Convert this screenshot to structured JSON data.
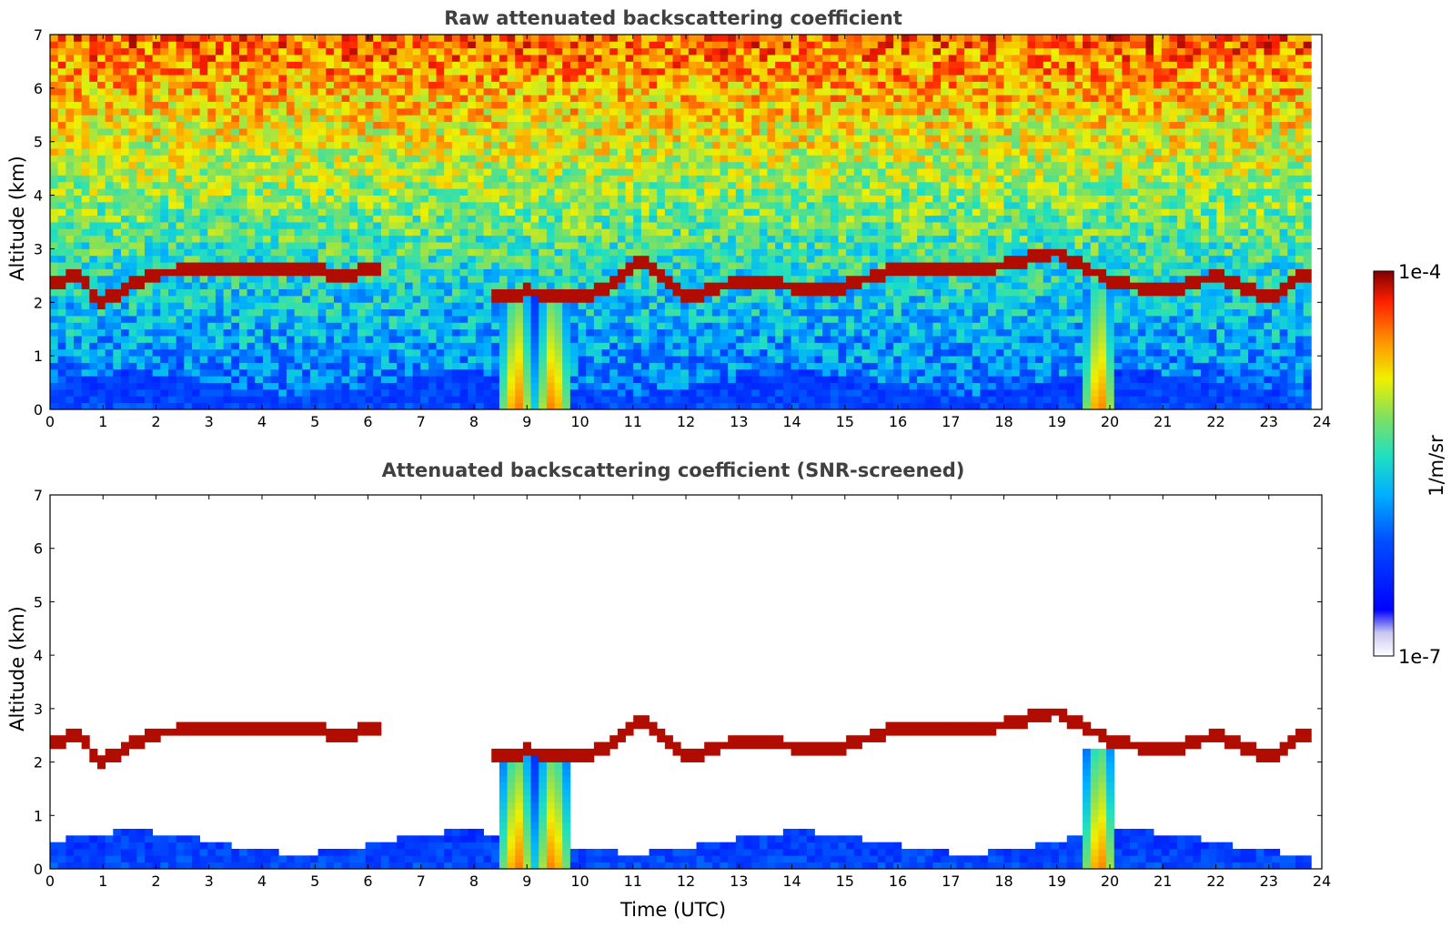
{
  "chart_data": [
    {
      "type": "heatmap",
      "title": "Raw attenuated backscattering coefficient",
      "ylabel": "Altitude (km)",
      "xlabel": "",
      "xlim": [
        0,
        24
      ],
      "ylim": [
        0,
        7
      ],
      "xticks": [
        "0",
        "1",
        "2",
        "3",
        "4",
        "5",
        "6",
        "7",
        "8",
        "9",
        "10",
        "11",
        "12",
        "13",
        "14",
        "15",
        "16",
        "17",
        "18",
        "19",
        "20",
        "21",
        "22",
        "23",
        "24"
      ],
      "yticks": [
        "0",
        "1",
        "2",
        "3",
        "4",
        "5",
        "6",
        "7"
      ],
      "features": {
        "boundary_layer_top_km": 0.5,
        "cloud_layer": [
          [
            0.0,
            2.35
          ],
          [
            0.5,
            2.5
          ],
          [
            1.0,
            2.0
          ],
          [
            1.5,
            2.3
          ],
          [
            2.0,
            2.55
          ],
          [
            3.0,
            2.6
          ],
          [
            4.0,
            2.6
          ],
          [
            5.0,
            2.6
          ],
          [
            5.6,
            2.5
          ],
          [
            6.3,
            2.7
          ],
          [
            7.0,
            null
          ],
          [
            8.3,
            2.1
          ],
          [
            9.0,
            2.2
          ],
          [
            10.0,
            2.1
          ],
          [
            10.5,
            2.3
          ],
          [
            11.2,
            2.8
          ],
          [
            12.0,
            2.1
          ],
          [
            13.0,
            2.4
          ],
          [
            14.0,
            2.3
          ],
          [
            15.0,
            2.3
          ],
          [
            16.0,
            2.65
          ],
          [
            17.0,
            2.6
          ],
          [
            18.0,
            2.7
          ],
          [
            19.0,
            2.95
          ],
          [
            20.0,
            2.4
          ],
          [
            21.0,
            2.2
          ],
          [
            22.0,
            2.5
          ],
          [
            23.0,
            2.1
          ],
          [
            23.8,
            2.6
          ]
        ],
        "precipitation_x": [
          8.8,
          9.5,
          19.8
        ]
      },
      "colorbar": {
        "min": "1e-7",
        "max": "1e-4",
        "label": "1/m/sr",
        "scale": "log"
      }
    },
    {
      "type": "heatmap",
      "title": "Attenuated backscattering coefficient (SNR-screened)",
      "ylabel": "Altitude (km)",
      "xlabel": "Time (UTC)",
      "xlim": [
        0,
        24
      ],
      "ylim": [
        0,
        7
      ],
      "xticks": [
        "0",
        "1",
        "2",
        "3",
        "4",
        "5",
        "6",
        "7",
        "8",
        "9",
        "10",
        "11",
        "12",
        "13",
        "14",
        "15",
        "16",
        "17",
        "18",
        "19",
        "20",
        "21",
        "22",
        "23",
        "24"
      ],
      "yticks": [
        "0",
        "1",
        "2",
        "3",
        "4",
        "5",
        "6",
        "7"
      ],
      "colorbar": {
        "min": "1e-7",
        "max": "1e-4",
        "label": "1/m/sr",
        "scale": "log"
      }
    }
  ]
}
